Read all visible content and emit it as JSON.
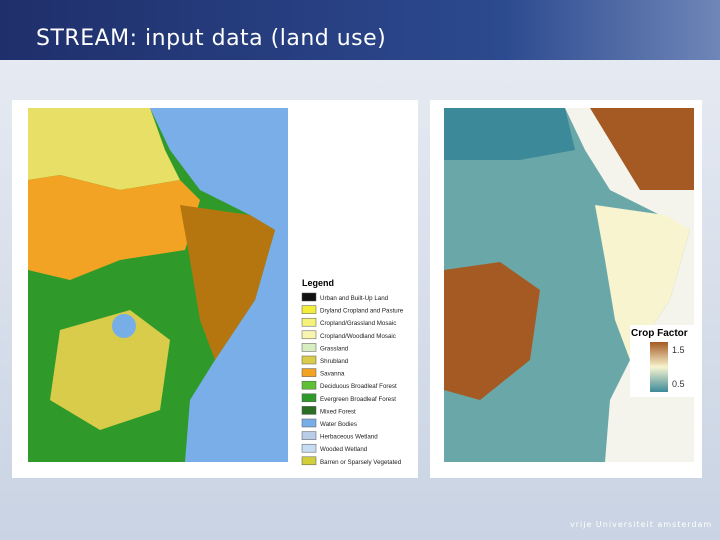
{
  "header": {
    "title": "STREAM: input data (land use)"
  },
  "legend": {
    "title": "Legend",
    "items": [
      {
        "label": "Urban and Built-Up Land",
        "color": "#111111"
      },
      {
        "label": "Dryland Cropland and Pasture",
        "color": "#f2ee3a"
      },
      {
        "label": "Cropland/Grassland Mosaic",
        "color": "#f5f27a"
      },
      {
        "label": "Cropland/Woodland Mosaic",
        "color": "#f8f5b0"
      },
      {
        "label": "Grassland",
        "color": "#d6eec0"
      },
      {
        "label": "Shrubland",
        "color": "#d9cc4a"
      },
      {
        "label": "Savanna",
        "color": "#f2a324"
      },
      {
        "label": "Deciduous Broadleaf Forest",
        "color": "#5fc035"
      },
      {
        "label": "Evergreen Broadleaf Forest",
        "color": "#2f9a2a"
      },
      {
        "label": "Mixed Forest",
        "color": "#2a6e24"
      },
      {
        "label": "Water Bodies",
        "color": "#78aee8"
      },
      {
        "label": "Herbaceous Wetland",
        "color": "#b9cde8"
      },
      {
        "label": "Wooded Wetland",
        "color": "#c6dcf2"
      },
      {
        "label": "Barren or Sparsely Vegetated",
        "color": "#d2cf3c"
      }
    ]
  },
  "crop_factor": {
    "title": "Crop Factor",
    "ticks": [
      1.5,
      0.5
    ]
  },
  "footer": {
    "text": "vrije Universiteit amsterdam"
  }
}
